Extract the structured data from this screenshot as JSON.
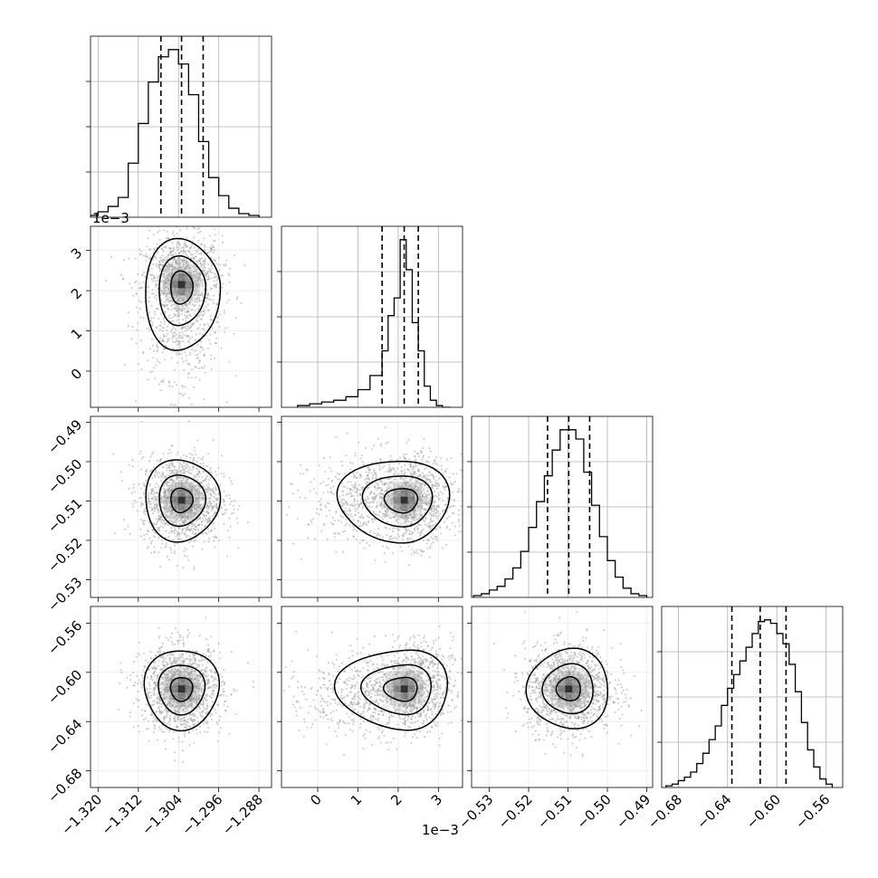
{
  "chart_data": {
    "type": "corner",
    "grid": true,
    "colors": {
      "hist": "#000000",
      "grid": "#b0b0b0",
      "points": "#9a9a9a",
      "contour": "#000000"
    },
    "params": [
      {
        "range": [
          -1.3215,
          -1.2855
        ],
        "ticks": [
          -1.32,
          -1.312,
          -1.304,
          -1.296,
          -1.288
        ],
        "tick_labels": [
          "−1.320",
          "−1.312",
          "−1.304",
          "−1.296",
          "−1.288"
        ],
        "offset": "",
        "quantiles": [
          -1.3075,
          -1.3034,
          -1.2991
        ],
        "hist_bins": [
          -1.3215,
          -1.32,
          -1.318,
          -1.316,
          -1.314,
          -1.312,
          -1.31,
          -1.308,
          -1.306,
          -1.304,
          -1.302,
          -1.3,
          -1.298,
          -1.296,
          -1.294,
          -1.292,
          -1.29,
          -1.288
        ],
        "hist_counts": [
          1,
          3,
          6,
          11,
          30,
          52,
          75,
          89,
          93,
          85,
          68,
          42,
          22,
          12,
          5,
          2,
          1
        ]
      },
      {
        "range": [
          -0.9,
          3.6
        ],
        "ticks": [
          0,
          1,
          2,
          3
        ],
        "tick_labels": [
          "0",
          "1",
          "2",
          "3"
        ],
        "offset": "1e−3",
        "quantiles": [
          1.6,
          2.15,
          2.5
        ],
        "hist_bins": [
          -0.5,
          -0.2,
          0.1,
          0.4,
          0.7,
          1.0,
          1.3,
          1.6,
          1.75,
          1.9,
          2.05,
          2.2,
          2.35,
          2.5,
          2.65,
          2.8,
          2.95,
          3.1,
          3.3
        ],
        "hist_counts": [
          1,
          2,
          3,
          4,
          6,
          10,
          18,
          32,
          52,
          62,
          95,
          78,
          48,
          32,
          12,
          4,
          1,
          0
        ]
      },
      {
        "range": [
          -0.5345,
          -0.4885
        ],
        "ticks": [
          -0.53,
          -0.52,
          -0.51,
          -0.5,
          -0.49
        ],
        "tick_labels": [
          "−0.53",
          "−0.52",
          "−0.51",
          "−0.50",
          "−0.49"
        ],
        "offset": "",
        "quantiles": [
          -0.5152,
          -0.5098,
          -0.5045
        ],
        "hist_bins": [
          -0.534,
          -0.532,
          -0.53,
          -0.528,
          -0.526,
          -0.524,
          -0.522,
          -0.52,
          -0.518,
          -0.516,
          -0.514,
          -0.512,
          -0.51,
          -0.508,
          -0.506,
          -0.504,
          -0.502,
          -0.5,
          -0.498,
          -0.496,
          -0.494,
          -0.492,
          -0.49
        ],
        "hist_counts": [
          1,
          2,
          4,
          6,
          10,
          16,
          25,
          38,
          52,
          66,
          80,
          91,
          91,
          86,
          68,
          50,
          33,
          20,
          11,
          5,
          2,
          1
        ]
      },
      {
        "range": [
          -0.6935,
          -0.5465
        ],
        "ticks": [
          -0.68,
          -0.64,
          -0.6,
          -0.56
        ],
        "tick_labels": [
          "−0.68",
          "−0.64",
          "−0.60",
          "−0.56"
        ],
        "offset": "",
        "quantiles": [
          -0.6365,
          -0.6135,
          -0.5925
        ],
        "hist_bins": [
          -0.69,
          -0.685,
          -0.68,
          -0.675,
          -0.67,
          -0.665,
          -0.66,
          -0.655,
          -0.65,
          -0.645,
          -0.64,
          -0.635,
          -0.63,
          -0.625,
          -0.62,
          -0.615,
          -0.61,
          -0.605,
          -0.6,
          -0.595,
          -0.59,
          -0.585,
          -0.58,
          -0.575,
          -0.57,
          -0.565,
          -0.56,
          -0.555
        ],
        "hist_counts": [
          1,
          2,
          4,
          6,
          9,
          14,
          20,
          28,
          36,
          48,
          58,
          66,
          74,
          82,
          90,
          97,
          98,
          96,
          90,
          84,
          72,
          56,
          38,
          22,
          12,
          5,
          2
        ]
      }
    ]
  }
}
